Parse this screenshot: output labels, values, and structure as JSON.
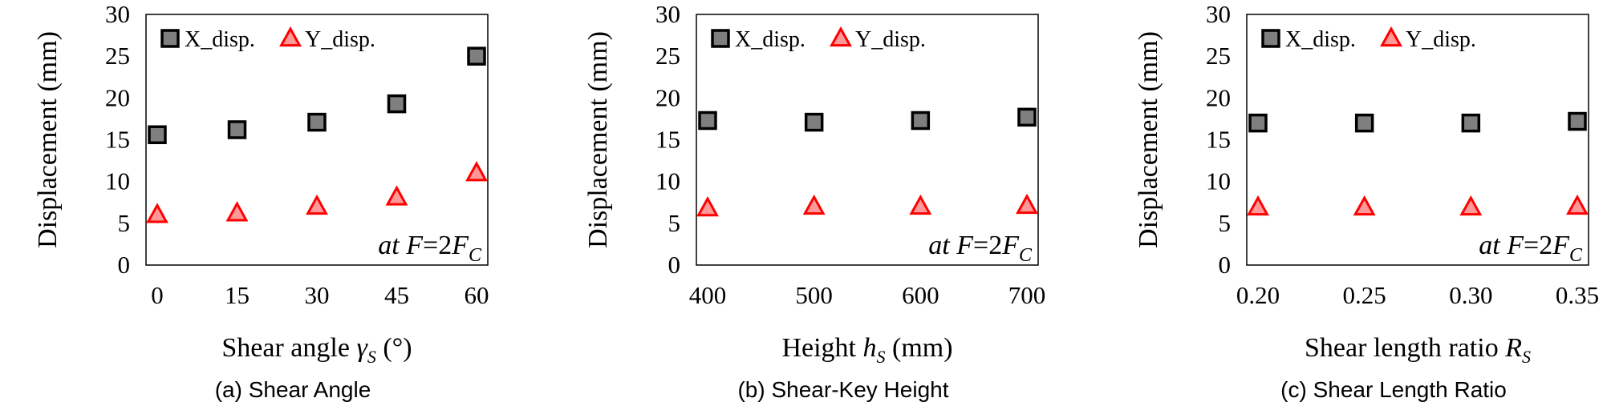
{
  "chart_data": [
    {
      "type": "scatter",
      "caption": "(a) Shear Angle",
      "xlabel": {
        "main": "Shear angle ",
        "sym": "γ",
        "sub": "S",
        "tail": " (°)"
      },
      "ylabel": "Displacement (mm)",
      "annotation": {
        "pre": "at ",
        "var": "F",
        "mid": "=2",
        "var2": "F",
        "sub": "C"
      },
      "x": [
        0,
        15,
        30,
        45,
        60
      ],
      "xticks": [
        "0",
        "15",
        "30",
        "45",
        "60"
      ],
      "xlim": [
        0,
        60
      ],
      "ylim": [
        0,
        30
      ],
      "yticks": [
        0,
        5,
        10,
        15,
        20,
        25,
        30
      ],
      "series": [
        {
          "name": "X_disp.",
          "marker": "square",
          "color": "#7f7f7f",
          "stroke": "#000000",
          "values": [
            15.6,
            16.2,
            17.1,
            19.3,
            25.0
          ]
        },
        {
          "name": "Y_disp.",
          "marker": "triangle",
          "color": "#ff9999",
          "stroke": "#ff0000",
          "values": [
            6.0,
            6.2,
            7.0,
            8.1,
            11.0
          ]
        }
      ]
    },
    {
      "type": "scatter",
      "caption": "(b) Shear-Key Height",
      "xlabel": {
        "main": "Height ",
        "sym": "h",
        "sub": "S",
        "tail": " (mm)"
      },
      "ylabel": "Displacement (mm)",
      "annotation": {
        "pre": "at ",
        "var": "F",
        "mid": "=2",
        "var2": "F",
        "sub": "C"
      },
      "x": [
        400,
        500,
        600,
        700
      ],
      "xticks": [
        "400",
        "500",
        "600",
        "700"
      ],
      "xlim": [
        400,
        700
      ],
      "ylim": [
        0,
        30
      ],
      "yticks": [
        0,
        5,
        10,
        15,
        20,
        25,
        30
      ],
      "series": [
        {
          "name": "X_disp.",
          "marker": "square",
          "color": "#7f7f7f",
          "stroke": "#000000",
          "values": [
            17.3,
            17.1,
            17.3,
            17.7
          ]
        },
        {
          "name": "Y_disp.",
          "marker": "triangle",
          "color": "#ff9999",
          "stroke": "#ff0000",
          "values": [
            6.8,
            7.0,
            7.0,
            7.1
          ]
        }
      ]
    },
    {
      "type": "scatter",
      "caption": "(c) Shear Length Ratio",
      "xlabel": {
        "main": "Shear length ratio ",
        "sym": "R",
        "sub": "S",
        "tail": ""
      },
      "ylabel": "Displacement (mm)",
      "annotation": {
        "pre": "at ",
        "var": "F",
        "mid": "=2",
        "var2": "F",
        "sub": "C"
      },
      "x": [
        0.2,
        0.25,
        0.3,
        0.35
      ],
      "xticks": [
        "0.20",
        "0.25",
        "0.30",
        "0.35"
      ],
      "xlim": [
        0.2,
        0.35
      ],
      "ylim": [
        0,
        30
      ],
      "yticks": [
        0,
        5,
        10,
        15,
        20,
        25,
        30
      ],
      "series": [
        {
          "name": "X_disp.",
          "marker": "square",
          "color": "#7f7f7f",
          "stroke": "#000000",
          "values": [
            17.0,
            17.0,
            17.0,
            17.2
          ]
        },
        {
          "name": "Y_disp.",
          "marker": "triangle",
          "color": "#ff9999",
          "stroke": "#ff0000",
          "values": [
            6.9,
            6.9,
            6.9,
            7.0
          ]
        }
      ]
    }
  ]
}
